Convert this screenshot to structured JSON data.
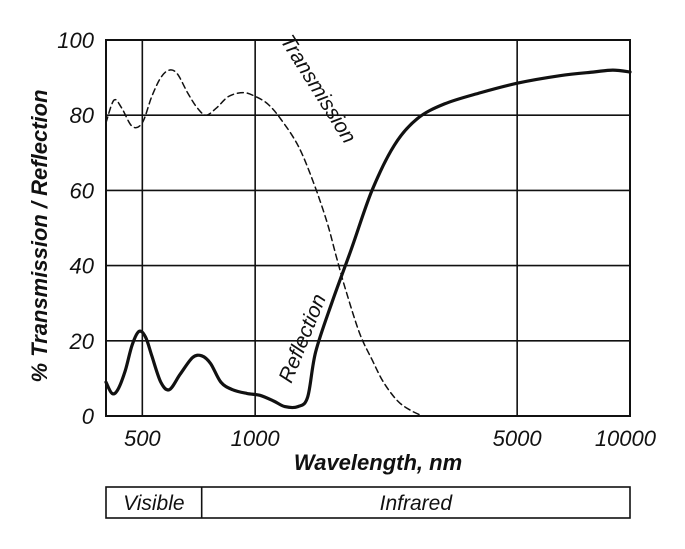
{
  "chart_data": {
    "type": "line",
    "xlabel": "Wavelength, nm",
    "ylabel": "% Transmission / Reflection",
    "x_scale": "log",
    "xlim": [
      400,
      10000
    ],
    "ylim": [
      0,
      100
    ],
    "grid": true,
    "x_ticks": [
      500,
      1000,
      5000,
      10000
    ],
    "x_tick_labels": [
      "500",
      "1000",
      "5000",
      "10000"
    ],
    "y_ticks": [
      0,
      20,
      40,
      60,
      80,
      100
    ],
    "y_tick_labels": [
      "0",
      "20",
      "40",
      "60",
      "80",
      "100"
    ],
    "series": [
      {
        "name": "Transmission",
        "style": "dashed",
        "color": "#111111",
        "points": [
          [
            400,
            78
          ],
          [
            420,
            84
          ],
          [
            440,
            82
          ],
          [
            470,
            77
          ],
          [
            500,
            78
          ],
          [
            530,
            85
          ],
          [
            560,
            90
          ],
          [
            590,
            92
          ],
          [
            620,
            91
          ],
          [
            660,
            86
          ],
          [
            700,
            82
          ],
          [
            740,
            80
          ],
          [
            790,
            82
          ],
          [
            850,
            85
          ],
          [
            930,
            86
          ],
          [
            1000,
            85
          ],
          [
            1080,
            83
          ],
          [
            1170,
            79
          ],
          [
            1300,
            72
          ],
          [
            1420,
            63
          ],
          [
            1550,
            52
          ],
          [
            1650,
            42
          ],
          [
            1750,
            33
          ],
          [
            1900,
            22
          ],
          [
            2050,
            15
          ],
          [
            2200,
            9
          ],
          [
            2400,
            4
          ],
          [
            2600,
            1.5
          ],
          [
            2800,
            0
          ]
        ]
      },
      {
        "name": "Reflection",
        "style": "solid",
        "color": "#111111",
        "points": [
          [
            400,
            9
          ],
          [
            415,
            6
          ],
          [
            430,
            7
          ],
          [
            450,
            12
          ],
          [
            470,
            19
          ],
          [
            490,
            22.5
          ],
          [
            510,
            21
          ],
          [
            530,
            16
          ],
          [
            560,
            9
          ],
          [
            590,
            7
          ],
          [
            630,
            11
          ],
          [
            680,
            15.5
          ],
          [
            720,
            16
          ],
          [
            760,
            14
          ],
          [
            810,
            9
          ],
          [
            870,
            7
          ],
          [
            950,
            6
          ],
          [
            1030,
            5.5
          ],
          [
            1120,
            4
          ],
          [
            1200,
            2.5
          ],
          [
            1300,
            2.5
          ],
          [
            1380,
            5
          ],
          [
            1450,
            17
          ],
          [
            1600,
            30
          ],
          [
            1800,
            44
          ],
          [
            2050,
            60
          ],
          [
            2350,
            72
          ],
          [
            2700,
            79
          ],
          [
            3200,
            83
          ],
          [
            4000,
            86
          ],
          [
            5000,
            88.5
          ],
          [
            6500,
            90.5
          ],
          [
            8000,
            91.5
          ],
          [
            9000,
            92
          ],
          [
            10000,
            91.5
          ]
        ]
      }
    ],
    "annotations": [
      {
        "text": "Transmission",
        "near_series": "Transmission",
        "rotation": "along curve"
      },
      {
        "text": "Reflection",
        "near_series": "Reflection",
        "rotation": "along curve"
      }
    ]
  },
  "spectrum_bar": {
    "regions": [
      {
        "label": "Visible",
        "from_nm": 400,
        "to_nm": 720
      },
      {
        "label": "Infrared",
        "from_nm": 720,
        "to_nm": 10000
      }
    ]
  }
}
